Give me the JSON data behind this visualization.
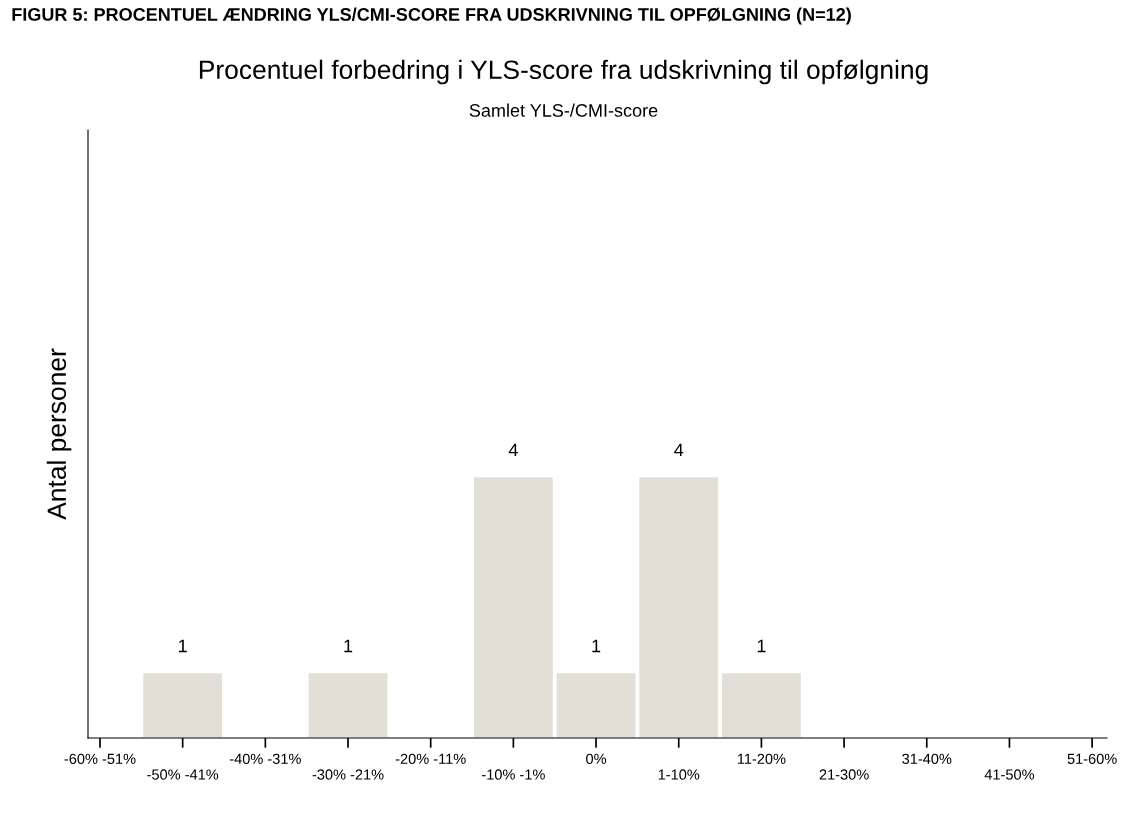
{
  "chart_data": {
    "type": "bar",
    "title": "Procentuel forbedring i YLS-score fra udskrivning til opfølgning",
    "subtitle": "Samlet YLS-/CMI-score",
    "ylabel": "Antal personer",
    "annotations": [
      "FIGUR 5: PROCENTUEL ÆNDRING YLS/CMI-SCORE FRA UDSKRIVNING TIL OPFØLGNING (N=12)"
    ],
    "categories": [
      "-60% -51%",
      "-50% -41%",
      "-40% -31%",
      "-30% -21%",
      "-20% -11%",
      "-10% -1%",
      "0%",
      "1-10%",
      "11-20%",
      "21-30%",
      "31-40%",
      "41-50%",
      "51-60%"
    ],
    "values": [
      0,
      1,
      0,
      1,
      0,
      4,
      1,
      4,
      1,
      0,
      0,
      0,
      0
    ],
    "value_labels": [
      null,
      "1",
      null,
      "1",
      null,
      "4",
      "1",
      "4",
      "1",
      null,
      null,
      null,
      null
    ],
    "color": "#e2dfd6",
    "ylim": [
      0,
      9.3
    ],
    "tick_labels": "x",
    "grid": false,
    "legend": false
  }
}
